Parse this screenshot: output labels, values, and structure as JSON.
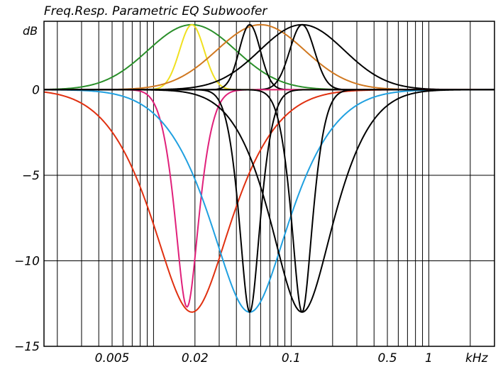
{
  "chart_data": {
    "type": "line",
    "title": "Freq.Resp. Parametric EQ Subwoofer",
    "ylabel": "dB",
    "xlabel": "kHz",
    "xscale": "log",
    "xlim": [
      0.0016,
      3.0
    ],
    "ylim": [
      -15,
      4
    ],
    "grid": true,
    "yticks": [
      0,
      -5,
      -10,
      -15
    ],
    "ytick_labels": [
      "0",
      "−5",
      "−10",
      "−15"
    ],
    "xticks": [
      0.005,
      0.02,
      0.1,
      0.5,
      1
    ],
    "xtick_labels": [
      "0.005",
      "0.02",
      "0.1",
      "0.5",
      "1"
    ],
    "series": [
      {
        "color": "#2a8f2a",
        "peak_dB": 3.8,
        "fc_kHz": 0.019,
        "octave_width": 2.5,
        "width_mode": "lin"
      },
      {
        "color": "#f0e020",
        "peak_dB": 3.8,
        "fc_kHz": 0.019,
        "octave_width": 0.7,
        "width_mode": "lin"
      },
      {
        "color": "#d07820",
        "peak_dB": 3.8,
        "fc_kHz": 0.06,
        "octave_width": 2.5,
        "width_mode": "lin"
      },
      {
        "color": "#000000",
        "peak_dB": 3.8,
        "fc_kHz": 0.05,
        "octave_width": 0.6,
        "width_mode": "lin"
      },
      {
        "color": "#000000",
        "peak_dB": 3.8,
        "fc_kHz": 0.12,
        "octave_width": 0.7,
        "width_mode": "lin"
      },
      {
        "color": "#000000",
        "peak_dB": 3.8,
        "fc_kHz": 0.12,
        "octave_width": 2.4,
        "width_mode": "lin"
      },
      {
        "color": "#e03010",
        "peak_dB": -13,
        "fc_kHz": 0.019,
        "octave_width": 3.0,
        "width_mode": "db"
      },
      {
        "color": "#e0207a",
        "peak_dB": -12.7,
        "fc_kHz": 0.0175,
        "octave_width": 0.9,
        "width_mode": "db"
      },
      {
        "color": "#20a0e0",
        "peak_dB": -13,
        "fc_kHz": 0.05,
        "octave_width": 3.0,
        "width_mode": "db"
      },
      {
        "color": "#000000",
        "peak_dB": -13,
        "fc_kHz": 0.05,
        "octave_width": 0.8,
        "width_mode": "db"
      },
      {
        "color": "#000000",
        "peak_dB": -13,
        "fc_kHz": 0.12,
        "octave_width": 0.8,
        "width_mode": "db"
      },
      {
        "color": "#000000",
        "peak_dB": -13,
        "fc_kHz": 0.12,
        "octave_width": 2.4,
        "width_mode": "db"
      }
    ]
  }
}
